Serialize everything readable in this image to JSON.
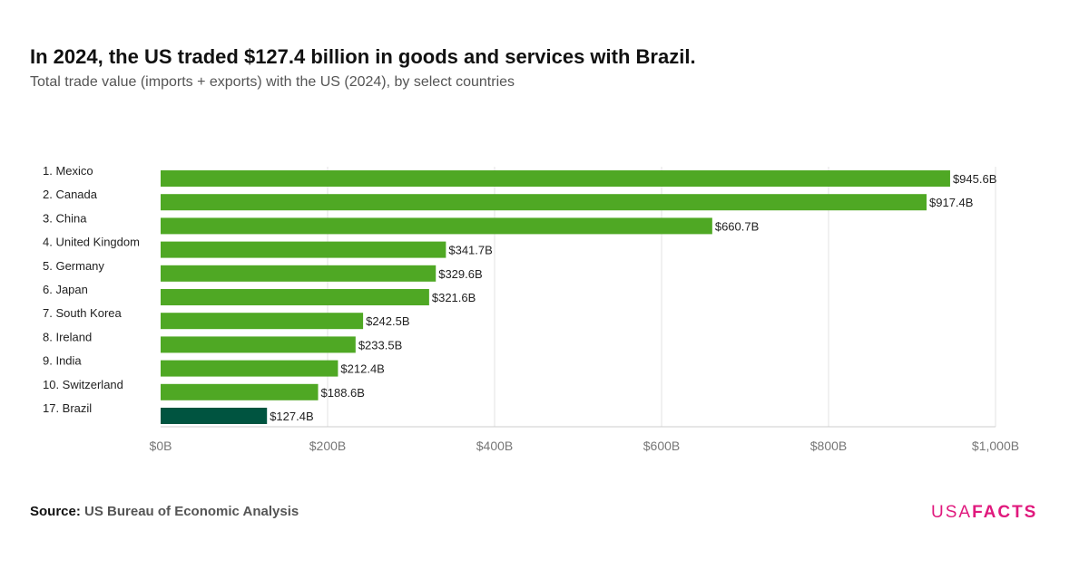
{
  "title": "In 2024, the US traded $127.4 billion in goods and services with Brazil.",
  "subtitle": "Total trade value (imports + exports) with the US (2024), by select countries",
  "source_label": "Source:",
  "source": "US Bureau of Economic Analysis",
  "logo": {
    "usa": "USA",
    "facts": "FACTS"
  },
  "colors": {
    "bar": "#4fa824",
    "highlight": "#005440",
    "logo": "#e0197d"
  },
  "chart_data": {
    "type": "bar",
    "orientation": "horizontal",
    "categories": [
      "1. Mexico",
      "2. Canada",
      "3. China",
      "4. United Kingdom",
      "5. Germany",
      "6. Japan",
      "7. South Korea",
      "8. Ireland",
      "9. India",
      "10. Switzerland",
      "17. Brazil"
    ],
    "values": [
      945.6,
      917.4,
      660.7,
      341.7,
      329.6,
      321.6,
      242.5,
      233.5,
      212.4,
      188.6,
      127.4
    ],
    "data_labels": [
      "$945.6B",
      "$917.4B",
      "$660.7B",
      "$341.7B",
      "$329.6B",
      "$321.6B",
      "$242.5B",
      "$233.5B",
      "$212.4B",
      "$188.6B",
      "$127.4B"
    ],
    "highlight": "17. Brazil",
    "xlim": [
      0,
      1000
    ],
    "xticks": [
      0,
      200,
      400,
      600,
      800,
      1000
    ],
    "xtick_labels": [
      "$0B",
      "$200B",
      "$400B",
      "$600B",
      "$800B",
      "$1,000B"
    ],
    "grid": "vertical"
  }
}
